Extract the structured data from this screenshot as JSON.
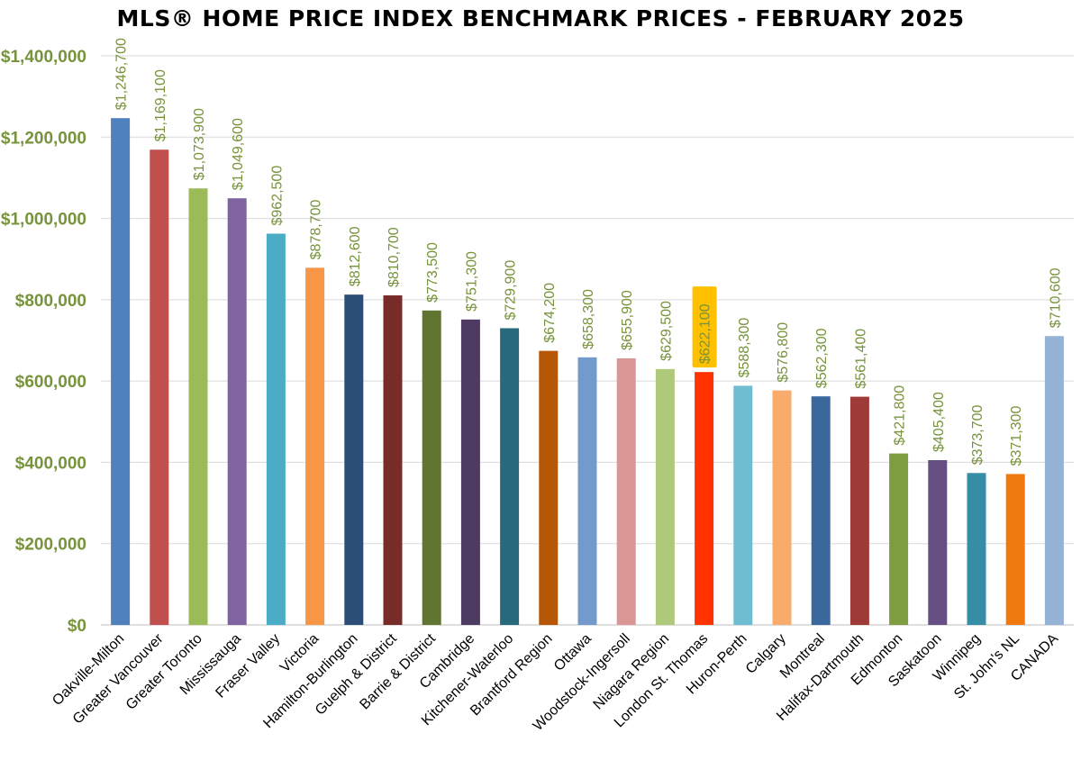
{
  "chart_data": {
    "type": "bar",
    "title": "MLS® HOME PRICE INDEX BENCHMARK PRICES - FEBRUARY 2025",
    "xlabel": "",
    "ylabel": "",
    "ylim": [
      0,
      1400000
    ],
    "yticks": [
      0,
      200000,
      400000,
      600000,
      800000,
      1000000,
      1200000,
      1400000
    ],
    "ytick_labels": [
      "$0",
      "$200,000",
      "$400,000",
      "$600,000",
      "$800,000",
      "$1,000,000",
      "$1,200,000",
      "$1,400,000"
    ],
    "grid": true,
    "legend": "none",
    "axis_label_color": "#77933C",
    "highlight_color": "#FFC000",
    "highlight_index": 15,
    "categories": [
      "Oakville-Milton",
      "Greater Vancouver",
      "Greater Toronto",
      "Mississauga",
      "Fraser Valley",
      "Victoria",
      "Hamilton-Burlington",
      "Guelph & District",
      "Barrie & District",
      "Cambridge",
      "Kitchener-Waterloo",
      "Brantford Region",
      "Ottawa",
      "Woodstock-Ingersoll",
      "Niagara Region",
      "London St. Thomas",
      "Huron-Perth",
      "Calgary",
      "Montreal",
      "Halifax-Dartmouth",
      "Edmonton",
      "Saskatoon",
      "Winnipeg",
      "St. John's NL",
      "CANADA"
    ],
    "values": [
      1246700,
      1169100,
      1073900,
      1049600,
      962500,
      878700,
      812600,
      810700,
      773500,
      751300,
      729900,
      674200,
      658300,
      655900,
      629500,
      622100,
      588300,
      576800,
      562300,
      561400,
      421800,
      405400,
      373700,
      371300,
      710600
    ],
    "value_labels": [
      "$1,246,700",
      "$1,169,100",
      "$1,073,900",
      "$1,049,600",
      "$962,500",
      "$878,700",
      "$812,600",
      "$810,700",
      "$773,500",
      "$751,300",
      "$729,900",
      "$674,200",
      "$658,300",
      "$655,900",
      "$629,500",
      "$622,100",
      "$588,300",
      "$576,800",
      "$562,300",
      "$561,400",
      "$421,800",
      "$405,400",
      "$373,700",
      "$371,300",
      "$710,600"
    ],
    "colors": [
      "#4F81BD",
      "#C0504D",
      "#9BBB59",
      "#8064A2",
      "#4BACC6",
      "#F79646",
      "#2C4D75",
      "#772C2A",
      "#5F7530",
      "#4D3B62",
      "#276A7C",
      "#B65708",
      "#729ACA",
      "#D99694",
      "#AFC97A",
      "#FF3300",
      "#6FBDD1",
      "#F9AB6B",
      "#3A679C",
      "#9E3B38",
      "#7E9D40",
      "#664F83",
      "#358EA6",
      "#F17A10",
      "#95B3D7"
    ]
  }
}
